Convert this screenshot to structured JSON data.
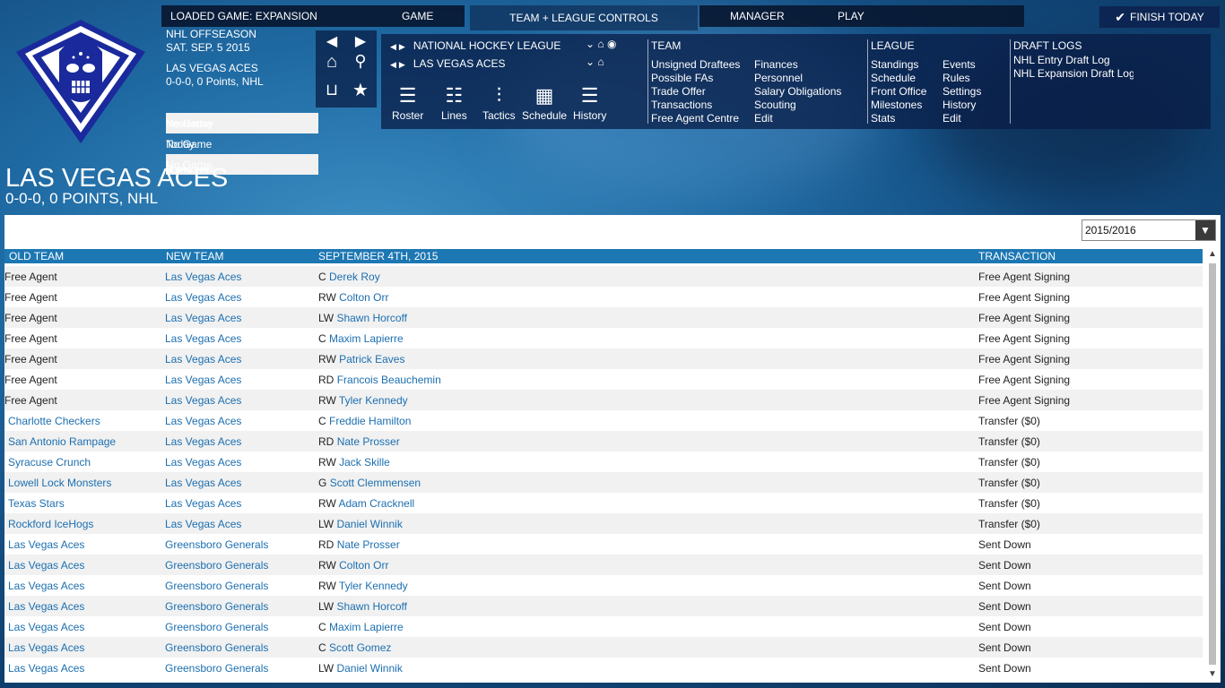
{
  "topnav": {
    "loaded_game": "LOADED GAME:  EXPANSION",
    "game": "GAME",
    "team_controls": "TEAM + LEAGUE CONTROLS",
    "manager": "MANAGER",
    "play": "PLAY",
    "finish_today": "FINISH TODAY"
  },
  "info": {
    "season": "NHL OFFSEASON",
    "date": "SAT. SEP. 5 2015",
    "team": "LAS VEGAS ACES",
    "record": "0-0-0, 0 Points, NHL",
    "yesterday_label": "Yesterday",
    "yesterday_value": "No Game",
    "today_label": "Today",
    "today_value": "No Game",
    "tomorrow_label": "Tomorrow",
    "tomorrow_value": "No Game"
  },
  "controls": {
    "league_name": "NATIONAL HOCKEY LEAGUE",
    "team_name": "LAS VEGAS ACES",
    "tools": [
      {
        "label": "Roster",
        "icon": "roster-icon"
      },
      {
        "label": "Lines",
        "icon": "lines-icon"
      },
      {
        "label": "Tactics",
        "icon": "tactics-icon"
      },
      {
        "label": "Schedule",
        "icon": "schedule-icon"
      },
      {
        "label": "History",
        "icon": "history-icon"
      }
    ],
    "team_header": "TEAM",
    "team_col1": [
      "Unsigned Draftees",
      "Possible FAs",
      "Trade Offer",
      "Transactions",
      "Free Agent Centre"
    ],
    "team_col2": [
      "Finances",
      "Personnel",
      "Salary Obligations",
      "Scouting",
      "Edit"
    ],
    "league_header": "LEAGUE",
    "league_col1": [
      "Standings",
      "Schedule",
      "Front Office",
      "Milestones",
      "Stats"
    ],
    "league_col2": [
      "Events",
      "Rules",
      "Settings",
      "History",
      "Edit"
    ],
    "draft_header": "DRAFT LOGS",
    "draft_items": [
      "NHL Entry Draft Log",
      "NHL Expansion Draft Log"
    ]
  },
  "page": {
    "title": "LAS VEGAS ACES",
    "subtitle": "0-0-0, 0 POINTS, NHL",
    "season_select": "2015/2016"
  },
  "table": {
    "headers": [
      "OLD TEAM",
      "NEW TEAM",
      "SEPTEMBER 4TH, 2015",
      "TRANSACTION"
    ],
    "rows": [
      {
        "old": "Free Agent",
        "old_link": false,
        "new": "Las Vegas Aces",
        "pos": "C",
        "player": "Derek Roy",
        "tx": "Free Agent Signing"
      },
      {
        "old": "Free Agent",
        "old_link": false,
        "new": "Las Vegas Aces",
        "pos": "RW",
        "player": "Colton Orr",
        "tx": "Free Agent Signing"
      },
      {
        "old": "Free Agent",
        "old_link": false,
        "new": "Las Vegas Aces",
        "pos": "LW",
        "player": "Shawn Horcoff",
        "tx": "Free Agent Signing"
      },
      {
        "old": "Free Agent",
        "old_link": false,
        "new": "Las Vegas Aces",
        "pos": "C",
        "player": "Maxim Lapierre",
        "tx": "Free Agent Signing"
      },
      {
        "old": "Free Agent",
        "old_link": false,
        "new": "Las Vegas Aces",
        "pos": "RW",
        "player": "Patrick Eaves",
        "tx": "Free Agent Signing"
      },
      {
        "old": "Free Agent",
        "old_link": false,
        "new": "Las Vegas Aces",
        "pos": "RD",
        "player": "Francois Beauchemin",
        "tx": "Free Agent Signing"
      },
      {
        "old": "Free Agent",
        "old_link": false,
        "new": "Las Vegas Aces",
        "pos": "RW",
        "player": "Tyler Kennedy",
        "tx": "Free Agent Signing"
      },
      {
        "old": "Charlotte Checkers",
        "old_link": true,
        "new": "Las Vegas Aces",
        "pos": "C",
        "player": "Freddie Hamilton",
        "tx": "Transfer ($0)"
      },
      {
        "old": "San Antonio Rampage",
        "old_link": true,
        "new": "Las Vegas Aces",
        "pos": "RD",
        "player": "Nate Prosser",
        "tx": "Transfer ($0)"
      },
      {
        "old": "Syracuse Crunch",
        "old_link": true,
        "new": "Las Vegas Aces",
        "pos": "RW",
        "player": "Jack Skille",
        "tx": "Transfer ($0)"
      },
      {
        "old": "Lowell Lock Monsters",
        "old_link": true,
        "new": "Las Vegas Aces",
        "pos": "G",
        "player": "Scott Clemmensen",
        "tx": "Transfer ($0)"
      },
      {
        "old": "Texas Stars",
        "old_link": true,
        "new": "Las Vegas Aces",
        "pos": "RW",
        "player": "Adam Cracknell",
        "tx": "Transfer ($0)"
      },
      {
        "old": "Rockford IceHogs",
        "old_link": true,
        "new": "Las Vegas Aces",
        "pos": "LW",
        "player": "Daniel Winnik",
        "tx": "Transfer ($0)"
      },
      {
        "old": "Las Vegas Aces",
        "old_link": true,
        "new": "Greensboro Generals",
        "pos": "RD",
        "player": "Nate Prosser",
        "tx": "Sent Down"
      },
      {
        "old": "Las Vegas Aces",
        "old_link": true,
        "new": "Greensboro Generals",
        "pos": "RW",
        "player": "Colton Orr",
        "tx": "Sent Down"
      },
      {
        "old": "Las Vegas Aces",
        "old_link": true,
        "new": "Greensboro Generals",
        "pos": "RW",
        "player": "Tyler Kennedy",
        "tx": "Sent Down"
      },
      {
        "old": "Las Vegas Aces",
        "old_link": true,
        "new": "Greensboro Generals",
        "pos": "LW",
        "player": "Shawn Horcoff",
        "tx": "Sent Down"
      },
      {
        "old": "Las Vegas Aces",
        "old_link": true,
        "new": "Greensboro Generals",
        "pos": "C",
        "player": "Maxim Lapierre",
        "tx": "Sent Down"
      },
      {
        "old": "Las Vegas Aces",
        "old_link": true,
        "new": "Greensboro Generals",
        "pos": "C",
        "player": "Scott Gomez",
        "tx": "Sent Down"
      },
      {
        "old": "Las Vegas Aces",
        "old_link": true,
        "new": "Greensboro Generals",
        "pos": "LW",
        "player": "Daniel Winnik",
        "tx": "Sent Down"
      }
    ]
  },
  "colors": {
    "link": "#1c6fb0",
    "header_bar": "#1c77b3",
    "logo_blue": "#1a2a9c"
  }
}
